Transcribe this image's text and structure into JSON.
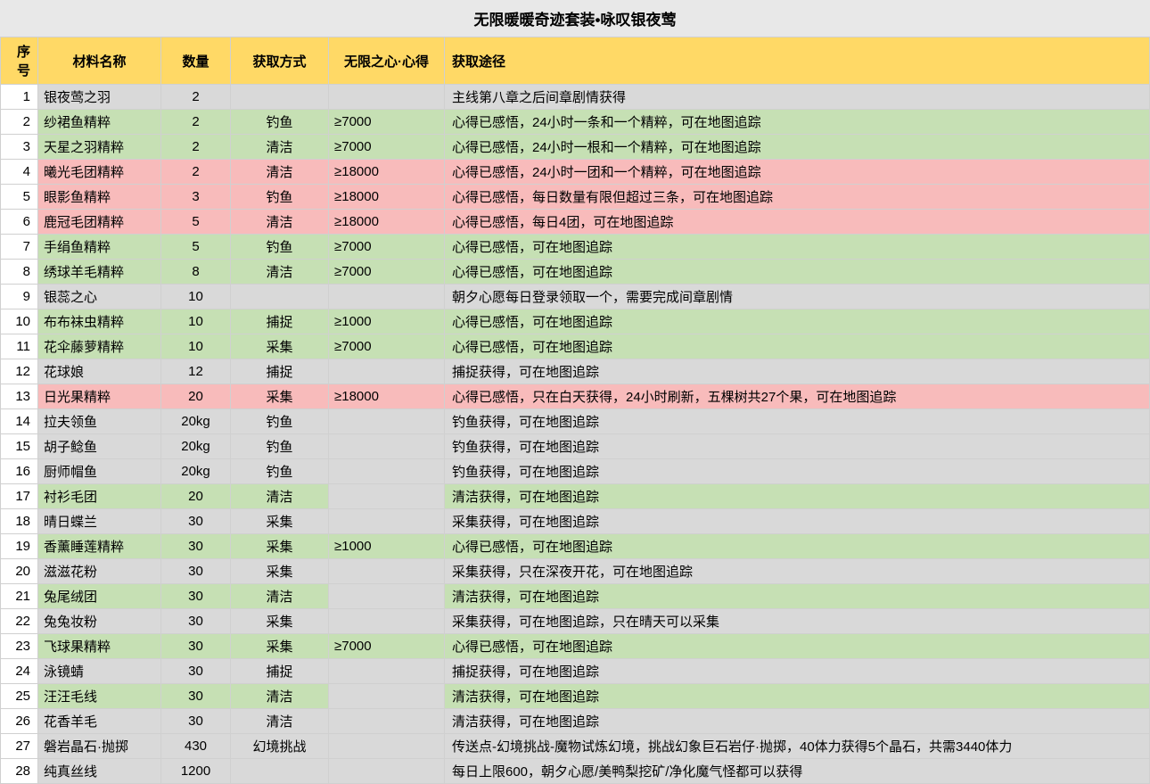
{
  "title": "无限暖暖奇迹套装•咏叹银夜莺",
  "headers": {
    "seq": "序号",
    "name": "材料名称",
    "qty": "数量",
    "method": "获取方式",
    "heart": "无限之心·心得",
    "path": "获取途径"
  },
  "colors": {
    "header_bg": "#ffd966",
    "title_bg": "#e8e8e8",
    "gray": "#d9d9d9",
    "green": "#c6e0b4",
    "pink": "#f8bbbb",
    "white": "#ffffff",
    "border": "#d0d0d0"
  },
  "rows": [
    {
      "seq": "1",
      "name": "银夜莺之羽",
      "qty": "2",
      "method": "",
      "heart": "",
      "path": "主线第八章之后间章剧情获得",
      "c": {
        "seq": "white",
        "name": "gray",
        "qty": "gray",
        "method": "gray",
        "heart": "gray",
        "path": "gray"
      }
    },
    {
      "seq": "2",
      "name": "纱裙鱼精粹",
      "qty": "2",
      "method": "钓鱼",
      "heart": "≥7000",
      "path": "心得已感悟，24小时一条和一个精粹，可在地图追踪",
      "c": {
        "seq": "white",
        "name": "green",
        "qty": "green",
        "method": "green",
        "heart": "green",
        "path": "green"
      }
    },
    {
      "seq": "3",
      "name": "天星之羽精粹",
      "qty": "2",
      "method": "清洁",
      "heart": "≥7000",
      "path": "心得已感悟，24小时一根和一个精粹，可在地图追踪",
      "c": {
        "seq": "white",
        "name": "green",
        "qty": "green",
        "method": "green",
        "heart": "green",
        "path": "green"
      }
    },
    {
      "seq": "4",
      "name": "曦光毛团精粹",
      "qty": "2",
      "method": "清洁",
      "heart": "≥18000",
      "path": "心得已感悟，24小时一团和一个精粹，可在地图追踪",
      "c": {
        "seq": "white",
        "name": "pink",
        "qty": "pink",
        "method": "pink",
        "heart": "pink",
        "path": "pink"
      }
    },
    {
      "seq": "5",
      "name": "眼影鱼精粹",
      "qty": "3",
      "method": "钓鱼",
      "heart": "≥18000",
      "path": "心得已感悟，每日数量有限但超过三条，可在地图追踪",
      "c": {
        "seq": "white",
        "name": "pink",
        "qty": "pink",
        "method": "pink",
        "heart": "pink",
        "path": "pink"
      }
    },
    {
      "seq": "6",
      "name": "鹿冠毛团精粹",
      "qty": "5",
      "method": "清洁",
      "heart": "≥18000",
      "path": "心得已感悟，每日4团，可在地图追踪",
      "c": {
        "seq": "white",
        "name": "pink",
        "qty": "pink",
        "method": "pink",
        "heart": "pink",
        "path": "pink"
      }
    },
    {
      "seq": "7",
      "name": "手绢鱼精粹",
      "qty": "5",
      "method": "钓鱼",
      "heart": "≥7000",
      "path": "心得已感悟，可在地图追踪",
      "c": {
        "seq": "white",
        "name": "green",
        "qty": "green",
        "method": "green",
        "heart": "green",
        "path": "green"
      }
    },
    {
      "seq": "8",
      "name": "绣球羊毛精粹",
      "qty": "8",
      "method": "清洁",
      "heart": "≥7000",
      "path": "心得已感悟，可在地图追踪",
      "c": {
        "seq": "white",
        "name": "green",
        "qty": "green",
        "method": "green",
        "heart": "green",
        "path": "green"
      }
    },
    {
      "seq": "9",
      "name": "银蕊之心",
      "qty": "10",
      "method": "",
      "heart": "",
      "path": "朝夕心愿每日登录领取一个，需要完成间章剧情",
      "c": {
        "seq": "white",
        "name": "gray",
        "qty": "gray",
        "method": "gray",
        "heart": "gray",
        "path": "gray"
      }
    },
    {
      "seq": "10",
      "name": "布布袜虫精粹",
      "qty": "10",
      "method": "捕捉",
      "heart": "≥1000",
      "path": "心得已感悟，可在地图追踪",
      "c": {
        "seq": "white",
        "name": "green",
        "qty": "green",
        "method": "green",
        "heart": "green",
        "path": "green"
      }
    },
    {
      "seq": "11",
      "name": "花伞藤萝精粹",
      "qty": "10",
      "method": "采集",
      "heart": "≥7000",
      "path": "心得已感悟，可在地图追踪",
      "c": {
        "seq": "white",
        "name": "green",
        "qty": "green",
        "method": "green",
        "heart": "green",
        "path": "green"
      }
    },
    {
      "seq": "12",
      "name": "花球娘",
      "qty": "12",
      "method": "捕捉",
      "heart": "",
      "path": "捕捉获得，可在地图追踪",
      "c": {
        "seq": "white",
        "name": "gray",
        "qty": "gray",
        "method": "gray",
        "heart": "gray",
        "path": "gray"
      }
    },
    {
      "seq": "13",
      "name": "日光果精粹",
      "qty": "20",
      "method": "采集",
      "heart": "≥18000",
      "path": "心得已感悟，只在白天获得，24小时刷新，五棵树共27个果，可在地图追踪",
      "c": {
        "seq": "white",
        "name": "pink",
        "qty": "pink",
        "method": "pink",
        "heart": "pink",
        "path": "pink"
      }
    },
    {
      "seq": "14",
      "name": "拉夫领鱼",
      "qty": "20kg",
      "method": "钓鱼",
      "heart": "",
      "path": "钓鱼获得，可在地图追踪",
      "c": {
        "seq": "white",
        "name": "gray",
        "qty": "gray",
        "method": "gray",
        "heart": "gray",
        "path": "gray"
      }
    },
    {
      "seq": "15",
      "name": "胡子鲶鱼",
      "qty": "20kg",
      "method": "钓鱼",
      "heart": "",
      "path": "钓鱼获得，可在地图追踪",
      "c": {
        "seq": "white",
        "name": "gray",
        "qty": "gray",
        "method": "gray",
        "heart": "gray",
        "path": "gray"
      }
    },
    {
      "seq": "16",
      "name": "厨师帽鱼",
      "qty": "20kg",
      "method": "钓鱼",
      "heart": "",
      "path": "钓鱼获得，可在地图追踪",
      "c": {
        "seq": "white",
        "name": "gray",
        "qty": "gray",
        "method": "gray",
        "heart": "gray",
        "path": "gray"
      }
    },
    {
      "seq": "17",
      "name": "衬衫毛团",
      "qty": "20",
      "method": "清洁",
      "heart": "",
      "path": "清洁获得，可在地图追踪",
      "c": {
        "seq": "white",
        "name": "green",
        "qty": "green",
        "method": "green",
        "heart": "gray",
        "path": "green"
      }
    },
    {
      "seq": "18",
      "name": "晴日蝶兰",
      "qty": "30",
      "method": "采集",
      "heart": "",
      "path": "采集获得，可在地图追踪",
      "c": {
        "seq": "white",
        "name": "gray",
        "qty": "gray",
        "method": "gray",
        "heart": "gray",
        "path": "gray"
      }
    },
    {
      "seq": "19",
      "name": "香薰睡莲精粹",
      "qty": "30",
      "method": "采集",
      "heart": "≥1000",
      "path": "心得已感悟，可在地图追踪",
      "c": {
        "seq": "white",
        "name": "green",
        "qty": "green",
        "method": "green",
        "heart": "green",
        "path": "green"
      }
    },
    {
      "seq": "20",
      "name": "滋滋花粉",
      "qty": "30",
      "method": "采集",
      "heart": "",
      "path": "采集获得，只在深夜开花，可在地图追踪",
      "c": {
        "seq": "white",
        "name": "gray",
        "qty": "gray",
        "method": "gray",
        "heart": "gray",
        "path": "gray"
      }
    },
    {
      "seq": "21",
      "name": "兔尾绒团",
      "qty": "30",
      "method": "清洁",
      "heart": "",
      "path": "清洁获得，可在地图追踪",
      "c": {
        "seq": "white",
        "name": "green",
        "qty": "green",
        "method": "green",
        "heart": "gray",
        "path": "green"
      }
    },
    {
      "seq": "22",
      "name": "兔兔妆粉",
      "qty": "30",
      "method": "采集",
      "heart": "",
      "path": "采集获得，可在地图追踪，只在晴天可以采集",
      "c": {
        "seq": "white",
        "name": "gray",
        "qty": "gray",
        "method": "gray",
        "heart": "gray",
        "path": "gray"
      }
    },
    {
      "seq": "23",
      "name": "飞球果精粹",
      "qty": "30",
      "method": "采集",
      "heart": "≥7000",
      "path": "心得已感悟，可在地图追踪",
      "c": {
        "seq": "white",
        "name": "green",
        "qty": "green",
        "method": "green",
        "heart": "green",
        "path": "green"
      }
    },
    {
      "seq": "24",
      "name": "泳镜蜻",
      "qty": "30",
      "method": "捕捉",
      "heart": "",
      "path": "捕捉获得，可在地图追踪",
      "c": {
        "seq": "white",
        "name": "gray",
        "qty": "gray",
        "method": "gray",
        "heart": "gray",
        "path": "gray"
      }
    },
    {
      "seq": "25",
      "name": "汪汪毛线",
      "qty": "30",
      "method": "清洁",
      "heart": "",
      "path": "清洁获得，可在地图追踪",
      "c": {
        "seq": "white",
        "name": "green",
        "qty": "green",
        "method": "green",
        "heart": "gray",
        "path": "green"
      }
    },
    {
      "seq": "26",
      "name": "花香羊毛",
      "qty": "30",
      "method": "清洁",
      "heart": "",
      "path": "清洁获得，可在地图追踪",
      "c": {
        "seq": "white",
        "name": "gray",
        "qty": "gray",
        "method": "gray",
        "heart": "gray",
        "path": "gray"
      }
    },
    {
      "seq": "27",
      "name": "磐岩晶石·抛掷",
      "qty": "430",
      "method": "幻境挑战",
      "heart": "",
      "path": "传送点-幻境挑战-魔物试炼幻境，挑战幻象巨石岩仔·抛掷，40体力获得5个晶石，共需3440体力",
      "c": {
        "seq": "white",
        "name": "gray",
        "qty": "gray",
        "method": "gray",
        "heart": "gray",
        "path": "gray"
      }
    },
    {
      "seq": "28",
      "name": "纯真丝线",
      "qty": "1200",
      "method": "",
      "heart": "",
      "path": "每日上限600，朝夕心愿/美鸭梨挖矿/净化魔气怪都可以获得",
      "c": {
        "seq": "white",
        "name": "gray",
        "qty": "gray",
        "method": "gray",
        "heart": "gray",
        "path": "gray"
      }
    }
  ]
}
